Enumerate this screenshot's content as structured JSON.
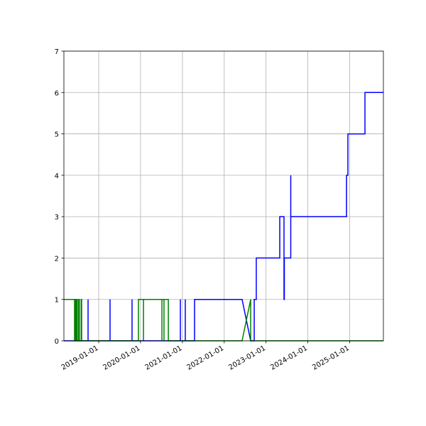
{
  "chart_data": {
    "type": "line",
    "title": "",
    "xlabel": "",
    "ylabel": "",
    "xlim": [
      "2018-03-03",
      "2025-10-22"
    ],
    "ylim": [
      0,
      7
    ],
    "grid": true,
    "x_ticks": [
      "2019-01-01",
      "2020-01-01",
      "2021-01-01",
      "2022-01-01",
      "2023-01-01",
      "2024-01-01",
      "2025-01-01"
    ],
    "y_ticks": [
      0,
      1,
      2,
      3,
      4,
      5,
      6,
      7
    ],
    "series": [
      {
        "color": "#0000ff",
        "points": [
          [
            "2018-03-03",
            0
          ],
          [
            "2018-06-10",
            0
          ],
          [
            "2018-06-10",
            1
          ],
          [
            "2018-06-10",
            0
          ],
          [
            "2018-09-30",
            0
          ],
          [
            "2018-09-30",
            1
          ],
          [
            "2018-09-30",
            0
          ],
          [
            "2019-04-10",
            0
          ],
          [
            "2019-04-10",
            1
          ],
          [
            "2019-04-10",
            0
          ],
          [
            "2019-10-19",
            0
          ],
          [
            "2019-10-19",
            1
          ],
          [
            "2019-10-19",
            0
          ],
          [
            "2020-12-14",
            0
          ],
          [
            "2020-12-14",
            1
          ],
          [
            "2020-12-14",
            0
          ],
          [
            "2021-01-26",
            0
          ],
          [
            "2021-01-26",
            1
          ],
          [
            "2021-01-26",
            0
          ],
          [
            "2021-04-17",
            0
          ],
          [
            "2021-04-17",
            1
          ],
          [
            "2022-06-06",
            1
          ],
          [
            "2022-08-20",
            0
          ],
          [
            "2022-09-20",
            0
          ],
          [
            "2022-09-20",
            1
          ],
          [
            "2022-10-08",
            1
          ],
          [
            "2022-10-08",
            2
          ],
          [
            "2023-05-01",
            2
          ],
          [
            "2023-05-01",
            3
          ],
          [
            "2023-06-07",
            3
          ],
          [
            "2023-06-07",
            1
          ],
          [
            "2023-06-10",
            1
          ],
          [
            "2023-06-10",
            2
          ],
          [
            "2023-08-05",
            2
          ],
          [
            "2023-08-05",
            4
          ],
          [
            "2023-08-05",
            3
          ],
          [
            "2024-12-04",
            3
          ],
          [
            "2024-12-04",
            4
          ],
          [
            "2024-12-16",
            4
          ],
          [
            "2024-12-16",
            5
          ],
          [
            "2025-05-14",
            5
          ],
          [
            "2025-05-14",
            6
          ],
          [
            "2025-10-22",
            6
          ]
        ]
      },
      {
        "color": "#008000",
        "points": [
          [
            "2018-03-03",
            1
          ],
          [
            "2018-06-04",
            1
          ],
          [
            "2018-06-04",
            0
          ],
          [
            "2018-06-10",
            0
          ],
          [
            "2018-06-10",
            1
          ],
          [
            "2018-06-16",
            1
          ],
          [
            "2018-06-16",
            0
          ],
          [
            "2018-06-22",
            0
          ],
          [
            "2018-06-22",
            1
          ],
          [
            "2018-06-28",
            1
          ],
          [
            "2018-06-28",
            0
          ],
          [
            "2018-07-10",
            0
          ],
          [
            "2018-07-10",
            1
          ],
          [
            "2018-07-16",
            1
          ],
          [
            "2018-07-16",
            0
          ],
          [
            "2018-08-01",
            0
          ],
          [
            "2018-08-01",
            1
          ],
          [
            "2018-08-05",
            1
          ],
          [
            "2018-08-05",
            0
          ],
          [
            "2019-12-14",
            0
          ],
          [
            "2019-12-14",
            1
          ],
          [
            "2020-01-27",
            1
          ],
          [
            "2020-01-27",
            0
          ],
          [
            "2020-01-27",
            1
          ],
          [
            "2020-07-06",
            1
          ],
          [
            "2020-07-06",
            0
          ],
          [
            "2020-07-06",
            1
          ],
          [
            "2020-07-24",
            1
          ],
          [
            "2020-07-24",
            0
          ],
          [
            "2020-07-24",
            1
          ],
          [
            "2020-08-31",
            1
          ],
          [
            "2020-08-31",
            0
          ],
          [
            "2022-06-06",
            0
          ],
          [
            "2022-08-20",
            1
          ],
          [
            "2022-08-20",
            0
          ],
          [
            "2025-10-22",
            0
          ]
        ]
      }
    ]
  }
}
